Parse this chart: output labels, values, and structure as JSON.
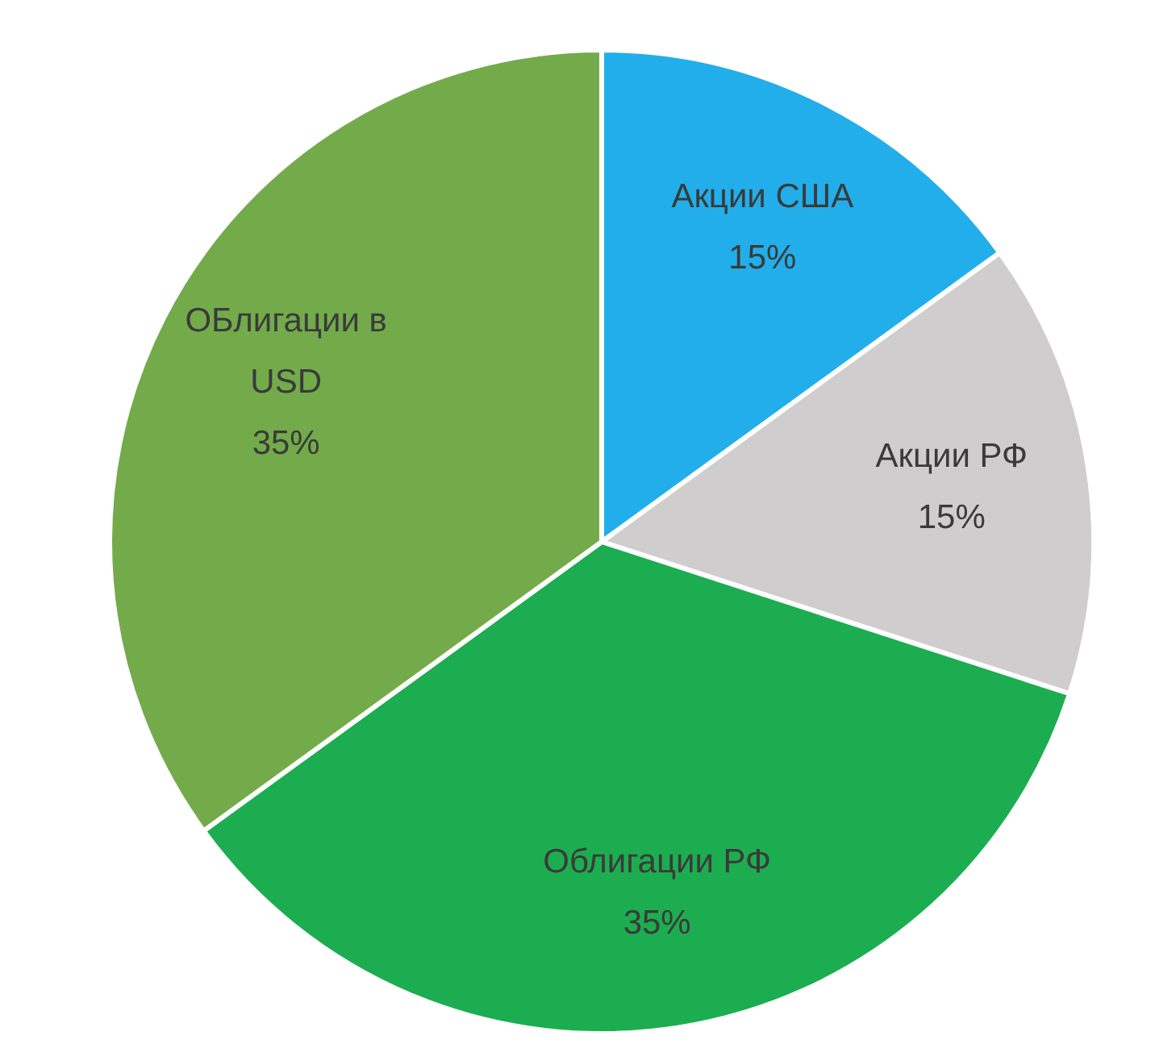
{
  "chart_data": {
    "type": "pie",
    "categories": [
      "Акции США",
      "Акции РФ",
      "Облигации РФ",
      "ОБлигации в USD"
    ],
    "values": [
      15,
      15,
      35,
      35
    ],
    "colors": [
      "#22aeea",
      "#cfcdce",
      "#1cad50",
      "#73ab4b"
    ],
    "value_labels": [
      "15%",
      "15%",
      "35%",
      "35%"
    ]
  }
}
